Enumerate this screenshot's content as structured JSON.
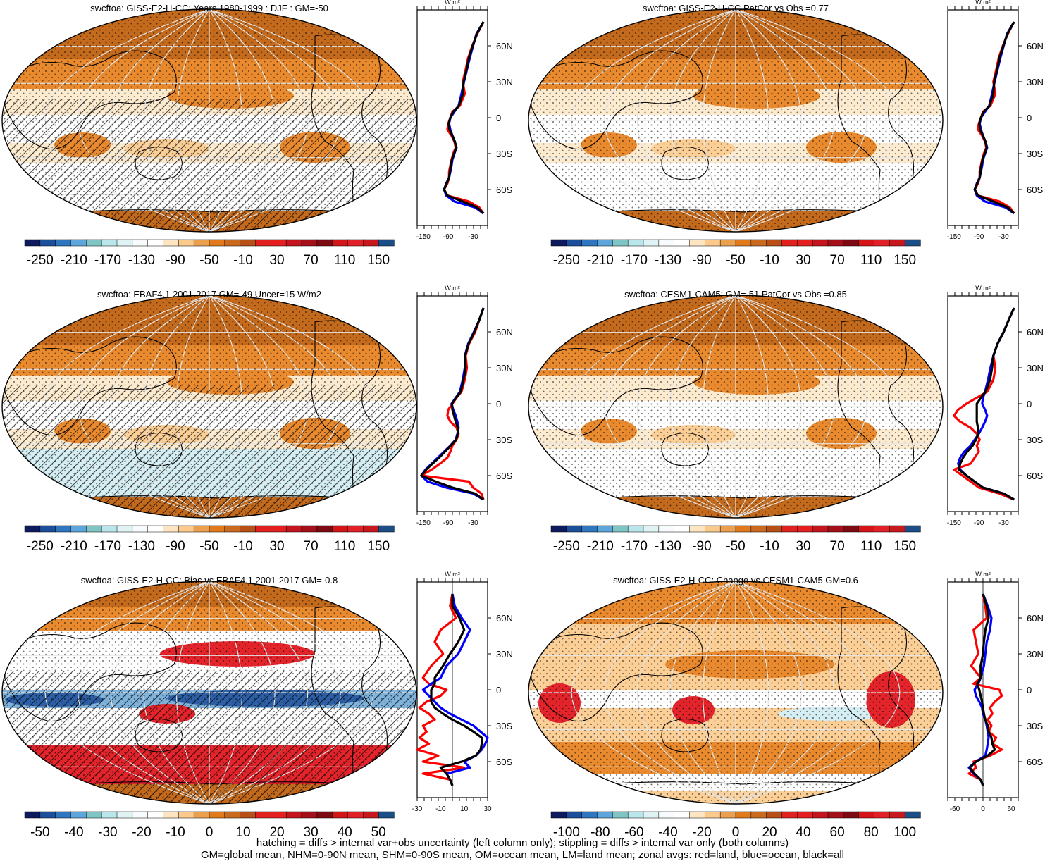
{
  "colors": {
    "scale": [
      "#0d1a5e",
      "#1b4f9c",
      "#2f76c0",
      "#5da6dc",
      "#7fc5c5",
      "#b8e6ea",
      "#dff3f5",
      "#f7fbfb",
      "#ffffff",
      "#fde5c1",
      "#fbc98c",
      "#eba04f",
      "#e07a1d",
      "#c96a1f",
      "#b84f16",
      "#e0211e",
      "#e51f20",
      "#c4141d",
      "#a3101a",
      "#7d0a12",
      "#d41417",
      "#e22027",
      "#c8171d",
      "#1b4d86"
    ],
    "zonal_land": "#ff0000",
    "zonal_ocean": "#0000ff",
    "zonal_all": "#000000",
    "map_deep": "#c46a1c",
    "map_mid": "#e98a2e",
    "map_light": "#fbcf96",
    "map_pale": "#fdebd0",
    "map_white": "#ffffff",
    "map_cyan": "#d4eef3",
    "map_red": "#e3242b",
    "map_blue": "#2c5fa6",
    "map_lightblue": "#7fb3dc",
    "graticule": "#e6e6e6"
  },
  "footer": {
    "line1": "hatching = diffs > internal var+obs uncertainty (left column only); stippling = diffs > internal var only (both columns)",
    "line2": "GM=global mean, NHM=0-90N mean, SHM=0-90S mean, OM=ocean mean, LM=land mean; zonal avgs: red=land, blue=ocean, black=all"
  },
  "chart_data": [
    {
      "type": "heatmap",
      "title": "swcftoa: GISS-E2-H-CC: Years 1980-1999 : DJF : GM=-50",
      "colorbar_labels": [
        "-250",
        "-210",
        "-170",
        "-130",
        "-90",
        "-50",
        "-10",
        "30",
        "70",
        "110",
        "150"
      ],
      "colorbar_range": [
        -270,
        170
      ],
      "hatched": true,
      "zonal": {
        "units": "W m²",
        "xticks": [
          "-150",
          "-90",
          "-30"
        ],
        "xlim": [
          -165,
          5
        ],
        "yticks": [
          "60N",
          "30N",
          "0",
          "30S",
          "60S"
        ],
        "ylim": [
          -90,
          90
        ],
        "lat": [
          80,
          70,
          60,
          50,
          40,
          30,
          20,
          10,
          5,
          0,
          -5,
          -10,
          -15,
          -20,
          -25,
          -30,
          -35,
          -40,
          -45,
          -50,
          -55,
          -60,
          -65,
          -70,
          -75,
          -80
        ],
        "land": [
          -5,
          -20,
          -32,
          -42,
          -48,
          -55,
          -50,
          -62,
          -80,
          -85,
          -90,
          -92,
          -82,
          -75,
          -72,
          -78,
          -82,
          -85,
          -88,
          -88,
          -92,
          -100,
          -92,
          -40,
          -15,
          -5
        ],
        "ocean": [
          -5,
          -22,
          -30,
          -38,
          -45,
          -52,
          -58,
          -65,
          -75,
          -85,
          -88,
          -85,
          -80,
          -74,
          -70,
          -75,
          -80,
          -82,
          -85,
          -88,
          -95,
          -100,
          -95,
          -75,
          -25,
          -5
        ],
        "all": [
          -5,
          -21,
          -31,
          -40,
          -46,
          -53,
          -55,
          -64,
          -78,
          -85,
          -89,
          -87,
          -80,
          -74,
          -71,
          -76,
          -81,
          -84,
          -86,
          -88,
          -94,
          -100,
          -92,
          -55,
          -20,
          -5
        ]
      }
    },
    {
      "type": "heatmap",
      "title": "swcftoa: GISS-E2-H-CC PatCor vs Obs =0.77",
      "colorbar_labels": [
        "-250",
        "-210",
        "-170",
        "-130",
        "-90",
        "-50",
        "-10",
        "30",
        "70",
        "110",
        "150"
      ],
      "colorbar_range": [
        -270,
        170
      ],
      "hatched": false,
      "zonal": {
        "units": "W m²",
        "xticks": [
          "-150",
          "-90",
          "-30"
        ],
        "xlim": [
          -165,
          5
        ],
        "yticks": [
          "60N",
          "30N",
          "0",
          "30S",
          "60S"
        ],
        "ylim": [
          -90,
          90
        ],
        "lat": [
          80,
          70,
          60,
          50,
          40,
          30,
          20,
          10,
          5,
          0,
          -5,
          -10,
          -15,
          -20,
          -25,
          -30,
          -35,
          -40,
          -45,
          -50,
          -55,
          -60,
          -65,
          -70,
          -75,
          -80
        ],
        "land": [
          -5,
          -20,
          -32,
          -42,
          -48,
          -55,
          -50,
          -62,
          -80,
          -85,
          -90,
          -92,
          -82,
          -75,
          -72,
          -78,
          -82,
          -85,
          -88,
          -88,
          -92,
          -100,
          -92,
          -40,
          -15,
          -5
        ],
        "ocean": [
          -5,
          -22,
          -30,
          -38,
          -45,
          -52,
          -58,
          -65,
          -75,
          -85,
          -88,
          -85,
          -80,
          -74,
          -70,
          -75,
          -80,
          -82,
          -85,
          -88,
          -95,
          -100,
          -95,
          -75,
          -25,
          -5
        ],
        "all": [
          -5,
          -21,
          -31,
          -40,
          -46,
          -53,
          -55,
          -64,
          -78,
          -85,
          -89,
          -87,
          -80,
          -74,
          -71,
          -76,
          -81,
          -84,
          -86,
          -88,
          -94,
          -100,
          -92,
          -55,
          -20,
          -5
        ]
      }
    },
    {
      "type": "heatmap",
      "title": "swcftoa: EBAF4.1 2001-2017 GM=-49 Uncer=15 W/m2",
      "colorbar_labels": [
        "-250",
        "-210",
        "-170",
        "-130",
        "-90",
        "-50",
        "-10",
        "30",
        "70",
        "110",
        "150"
      ],
      "colorbar_range": [
        -270,
        170
      ],
      "hatched": true,
      "zonal": {
        "units": "W m²",
        "xticks": [
          "-150",
          "-90",
          "-30"
        ],
        "xlim": [
          -165,
          5
        ],
        "yticks": [
          "60N",
          "30N",
          "0",
          "30S",
          "60S"
        ],
        "ylim": [
          -90,
          90
        ],
        "lat": [
          80,
          70,
          60,
          50,
          40,
          30,
          20,
          10,
          5,
          0,
          -5,
          -10,
          -15,
          -20,
          -25,
          -30,
          -35,
          -40,
          -45,
          -50,
          -55,
          -60,
          -65,
          -70,
          -75,
          -80
        ],
        "land": [
          -5,
          -15,
          -25,
          -40,
          -48,
          -45,
          -50,
          -58,
          -70,
          -80,
          -90,
          -92,
          -85,
          -70,
          -65,
          -70,
          -80,
          -85,
          -92,
          -110,
          -130,
          -155,
          -40,
          -30,
          -10,
          -5
        ],
        "ocean": [
          -5,
          -15,
          -28,
          -42,
          -50,
          -50,
          -55,
          -62,
          -72,
          -82,
          -78,
          -72,
          -68,
          -65,
          -68,
          -72,
          -85,
          -100,
          -115,
          -130,
          -145,
          -155,
          -140,
          -95,
          -30,
          -5
        ],
        "all": [
          -5,
          -15,
          -27,
          -41,
          -49,
          -48,
          -53,
          -60,
          -71,
          -81,
          -80,
          -76,
          -72,
          -67,
          -67,
          -71,
          -84,
          -98,
          -112,
          -128,
          -143,
          -155,
          -120,
          -80,
          -25,
          -5
        ]
      }
    },
    {
      "type": "heatmap",
      "title": "swcftoa: CESM1-CAM5: GM=-51 PatCor vs Obs =0.85",
      "colorbar_labels": [
        "-250",
        "-210",
        "-170",
        "-130",
        "-90",
        "-50",
        "-10",
        "30",
        "70",
        "110",
        "150"
      ],
      "colorbar_range": [
        -270,
        170
      ],
      "hatched": false,
      "zonal": {
        "units": "W m²",
        "xticks": [
          "-150",
          "-90",
          "-30"
        ],
        "xlim": [
          -165,
          5
        ],
        "yticks": [
          "60N",
          "30N",
          "0",
          "30S",
          "60S"
        ],
        "ylim": [
          -90,
          90
        ],
        "lat": [
          80,
          70,
          60,
          50,
          40,
          30,
          20,
          10,
          5,
          0,
          -5,
          -10,
          -15,
          -20,
          -25,
          -30,
          -35,
          -40,
          -45,
          -50,
          -55,
          -60,
          -65,
          -70,
          -75,
          -80
        ],
        "land": [
          -5,
          -18,
          -30,
          -45,
          -55,
          -50,
          -55,
          -70,
          -95,
          -120,
          -140,
          -150,
          -135,
          -110,
          -95,
          -88,
          -95,
          -90,
          -100,
          -110,
          -150,
          -130,
          -110,
          -90,
          -40,
          -5
        ],
        "ocean": [
          -5,
          -18,
          -30,
          -45,
          -55,
          -62,
          -68,
          -75,
          -80,
          -82,
          -75,
          -70,
          -75,
          -82,
          -90,
          -100,
          -110,
          -125,
          -135,
          -140,
          -135,
          -120,
          -100,
          -80,
          -30,
          -5
        ],
        "all": [
          -5,
          -18,
          -30,
          -45,
          -55,
          -58,
          -63,
          -74,
          -85,
          -95,
          -95,
          -95,
          -95,
          -92,
          -91,
          -97,
          -105,
          -118,
          -128,
          -135,
          -138,
          -120,
          -100,
          -80,
          -30,
          -5
        ]
      }
    },
    {
      "type": "heatmap",
      "title": "swcftoa: GISS-E2-H-CC: Bias vs EBAF4.1 2001-2017 GM=-0.8",
      "colorbar_labels": [
        "-50",
        "-40",
        "-30",
        "-20",
        "-10",
        "0",
        "10",
        "20",
        "30",
        "40",
        "50"
      ],
      "colorbar_range": [
        -55,
        55
      ],
      "hatched": true,
      "zonal": {
        "units": "W m²",
        "xticks": [
          "-30",
          "-10",
          "10",
          "30"
        ],
        "xlim": [
          -30,
          30
        ],
        "yticks": [
          "60N",
          "30N",
          "0",
          "30S",
          "60S"
        ],
        "ylim": [
          -90,
          90
        ],
        "lat": [
          80,
          70,
          60,
          50,
          40,
          30,
          20,
          10,
          5,
          0,
          -5,
          -10,
          -15,
          -20,
          -25,
          -30,
          -35,
          -40,
          -45,
          -50,
          -55,
          -60,
          -65,
          -70,
          -75,
          -80
        ],
        "land": [
          0,
          -2,
          3,
          -10,
          -15,
          -8,
          -18,
          -25,
          -20,
          -5,
          -10,
          -22,
          -28,
          -20,
          -15,
          -25,
          -22,
          -28,
          -20,
          -30,
          -12,
          -25,
          10,
          -25,
          -2,
          0
        ],
        "ocean": [
          0,
          2,
          8,
          15,
          10,
          5,
          -5,
          -10,
          -18,
          -25,
          -20,
          -15,
          -10,
          -2,
          8,
          18,
          24,
          30,
          28,
          25,
          20,
          10,
          15,
          -5,
          -2,
          0
        ],
        "all": [
          0,
          0,
          6,
          10,
          5,
          -2,
          -8,
          -15,
          -15,
          -18,
          -18,
          -18,
          -15,
          -8,
          0,
          10,
          18,
          25,
          25,
          24,
          20,
          8,
          -10,
          -5,
          -2,
          0
        ]
      }
    },
    {
      "type": "heatmap",
      "title": "swcftoa: GISS-E2-H-CC: Change vs CESM1-CAM5 GM=0.6",
      "colorbar_labels": [
        "-100",
        "-80",
        "-60",
        "-40",
        "-20",
        "0",
        "20",
        "40",
        "60",
        "80",
        "100"
      ],
      "colorbar_range": [
        -110,
        110
      ],
      "hatched": false,
      "zonal": {
        "units": "W m²",
        "xticks": [
          "-60",
          "0",
          "60"
        ],
        "xlim": [
          -75,
          75
        ],
        "yticks": [
          "60N",
          "30N",
          "0",
          "30S",
          "60S"
        ],
        "ylim": [
          -90,
          90
        ],
        "lat": [
          80,
          70,
          60,
          50,
          40,
          30,
          20,
          10,
          5,
          0,
          -5,
          -10,
          -15,
          -20,
          -25,
          -30,
          -35,
          -40,
          -45,
          -50,
          -55,
          -60,
          -65,
          -70,
          -75,
          -80
        ],
        "land": [
          0,
          5,
          8,
          -20,
          -15,
          -10,
          -25,
          -5,
          -20,
          35,
          40,
          25,
          15,
          20,
          10,
          18,
          12,
          28,
          20,
          40,
          15,
          -20,
          -15,
          -30,
          -5,
          0
        ],
        "ocean": [
          0,
          10,
          18,
          15,
          8,
          5,
          2,
          -5,
          -10,
          -18,
          -15,
          -8,
          -2,
          0,
          5,
          8,
          10,
          12,
          10,
          8,
          5,
          -15,
          -30,
          -20,
          -5,
          0
        ],
        "all": [
          0,
          8,
          12,
          5,
          2,
          0,
          -5,
          -5,
          -12,
          -8,
          -5,
          -2,
          0,
          2,
          5,
          10,
          12,
          18,
          20,
          25,
          10,
          -15,
          -28,
          -18,
          -5,
          0
        ]
      }
    }
  ]
}
